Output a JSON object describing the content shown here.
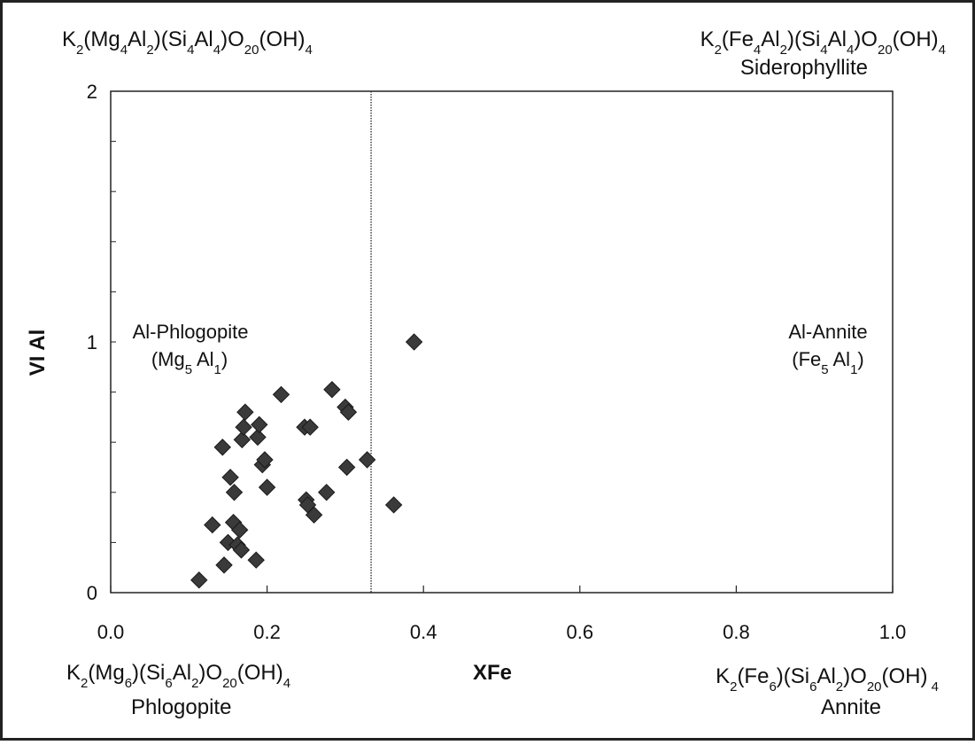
{
  "formulas": {
    "top_left": {
      "parts": [
        [
          "K",
          ""
        ],
        [
          "2",
          "sub"
        ],
        [
          "(Mg",
          ""
        ],
        [
          "4",
          "sub"
        ],
        [
          "Al",
          ""
        ],
        [
          "2",
          "sub"
        ],
        [
          ")(Si",
          ""
        ],
        [
          "4",
          "sub"
        ],
        [
          "Al",
          ""
        ],
        [
          "4",
          "sub"
        ],
        [
          ")O",
          ""
        ],
        [
          "20",
          "sub"
        ],
        [
          "(OH)",
          ""
        ],
        [
          "4",
          "sub"
        ]
      ]
    },
    "top_right": {
      "parts": [
        [
          "K",
          ""
        ],
        [
          "2",
          "sub"
        ],
        [
          "(Fe",
          ""
        ],
        [
          "4",
          "sub"
        ],
        [
          "Al",
          ""
        ],
        [
          "2",
          "sub"
        ],
        [
          ")(Si",
          ""
        ],
        [
          "4",
          "sub"
        ],
        [
          "Al",
          ""
        ],
        [
          "4",
          "sub"
        ],
        [
          ")O",
          ""
        ],
        [
          "20",
          "sub"
        ],
        [
          "(OH)",
          ""
        ],
        [
          "4",
          "sub"
        ]
      ],
      "name": "Siderophyllite"
    },
    "bottom_left": {
      "parts": [
        [
          "K",
          ""
        ],
        [
          "2",
          "sub"
        ],
        [
          "(Mg",
          ""
        ],
        [
          "6",
          "sub"
        ],
        [
          ")(Si",
          ""
        ],
        [
          "6",
          "sub"
        ],
        [
          "Al",
          ""
        ],
        [
          "2",
          "sub"
        ],
        [
          ")O",
          ""
        ],
        [
          "20",
          "sub"
        ],
        [
          "(OH)",
          ""
        ],
        [
          "4",
          "sub"
        ]
      ],
      "name": "Phlogopite"
    },
    "bottom_right": {
      "parts": [
        [
          "K",
          ""
        ],
        [
          "2",
          "sub"
        ],
        [
          "(Fe",
          ""
        ],
        [
          "6",
          "sub"
        ],
        [
          ")(Si",
          ""
        ],
        [
          "6",
          "sub"
        ],
        [
          "Al",
          ""
        ],
        [
          "2",
          "sub"
        ],
        [
          ")O",
          ""
        ],
        [
          "20",
          "sub"
        ],
        [
          "(OH)",
          ""
        ],
        [
          " 4",
          "sub"
        ]
      ],
      "name": "Annite"
    }
  },
  "regions": {
    "left": {
      "name": "Al-Phlogopite",
      "formula_parts": [
        [
          "(Mg",
          ""
        ],
        [
          "5",
          "sub"
        ],
        [
          " Al",
          ""
        ],
        [
          "1",
          "sub"
        ],
        [
          ")",
          ""
        ]
      ]
    },
    "right": {
      "name": "Al-Annite",
      "formula_parts": [
        [
          "(Fe",
          ""
        ],
        [
          "5",
          "sub"
        ],
        [
          " Al",
          ""
        ],
        [
          "1",
          "sub"
        ],
        [
          ")",
          ""
        ]
      ]
    }
  },
  "chart_data": {
    "type": "scatter",
    "xlabel": "XFe",
    "ylabel": "VI Al",
    "xlim": [
      0.0,
      1.0
    ],
    "ylim": [
      0,
      2
    ],
    "x_ticks": [
      "0.0",
      "0.2",
      "0.4",
      "0.6",
      "0.8",
      "1.0"
    ],
    "y_ticks": [
      "0",
      "1",
      "2"
    ],
    "divider_x": 0.333,
    "divider_style": "dotted",
    "marker": "diamond",
    "marker_color": "#3a3a3a",
    "points": [
      {
        "x": 0.113,
        "y": 0.05
      },
      {
        "x": 0.13,
        "y": 0.27
      },
      {
        "x": 0.143,
        "y": 0.58
      },
      {
        "x": 0.145,
        "y": 0.11
      },
      {
        "x": 0.15,
        "y": 0.2
      },
      {
        "x": 0.153,
        "y": 0.46
      },
      {
        "x": 0.157,
        "y": 0.28
      },
      {
        "x": 0.158,
        "y": 0.4
      },
      {
        "x": 0.162,
        "y": 0.19
      },
      {
        "x": 0.165,
        "y": 0.25
      },
      {
        "x": 0.167,
        "y": 0.17
      },
      {
        "x": 0.168,
        "y": 0.61
      },
      {
        "x": 0.17,
        "y": 0.66
      },
      {
        "x": 0.172,
        "y": 0.72
      },
      {
        "x": 0.186,
        "y": 0.13
      },
      {
        "x": 0.188,
        "y": 0.62
      },
      {
        "x": 0.19,
        "y": 0.67
      },
      {
        "x": 0.194,
        "y": 0.51
      },
      {
        "x": 0.197,
        "y": 0.53
      },
      {
        "x": 0.2,
        "y": 0.42
      },
      {
        "x": 0.218,
        "y": 0.79
      },
      {
        "x": 0.248,
        "y": 0.66
      },
      {
        "x": 0.25,
        "y": 0.37
      },
      {
        "x": 0.252,
        "y": 0.35
      },
      {
        "x": 0.255,
        "y": 0.66
      },
      {
        "x": 0.26,
        "y": 0.31
      },
      {
        "x": 0.276,
        "y": 0.4
      },
      {
        "x": 0.283,
        "y": 0.81
      },
      {
        "x": 0.3,
        "y": 0.74
      },
      {
        "x": 0.302,
        "y": 0.5
      },
      {
        "x": 0.304,
        "y": 0.72
      },
      {
        "x": 0.328,
        "y": 0.53
      },
      {
        "x": 0.362,
        "y": 0.35
      },
      {
        "x": 0.388,
        "y": 1.0
      }
    ]
  }
}
